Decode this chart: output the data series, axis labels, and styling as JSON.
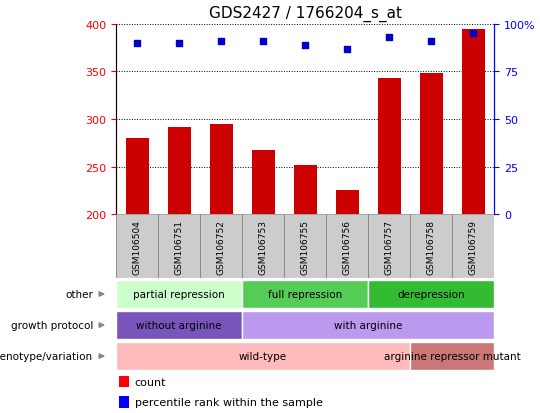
{
  "title": "GDS2427 / 1766204_s_at",
  "samples": [
    "GSM106504",
    "GSM106751",
    "GSM106752",
    "GSM106753",
    "GSM106755",
    "GSM106756",
    "GSM106757",
    "GSM106758",
    "GSM106759"
  ],
  "counts": [
    280,
    292,
    295,
    268,
    252,
    226,
    343,
    348,
    395
  ],
  "percentiles": [
    90,
    90,
    91,
    91,
    89,
    87,
    93,
    91,
    95
  ],
  "ylim_left": [
    200,
    400
  ],
  "ylim_right": [
    0,
    100
  ],
  "yticks_left": [
    200,
    250,
    300,
    350,
    400
  ],
  "yticks_right": [
    0,
    25,
    50,
    75,
    100
  ],
  "bar_color": "#cc0000",
  "dot_color": "#0000cc",
  "grid_color": "#000000",
  "title_fontsize": 11,
  "annotation_rows": [
    {
      "label": "other",
      "segments": [
        {
          "text": "partial repression",
          "span": [
            0,
            3
          ],
          "color": "#ccffcc"
        },
        {
          "text": "full repression",
          "span": [
            3,
            6
          ],
          "color": "#55cc55"
        },
        {
          "text": "derepression",
          "span": [
            6,
            9
          ],
          "color": "#33bb33"
        }
      ]
    },
    {
      "label": "growth protocol",
      "segments": [
        {
          "text": "without arginine",
          "span": [
            0,
            3
          ],
          "color": "#7755bb"
        },
        {
          "text": "with arginine",
          "span": [
            3,
            9
          ],
          "color": "#bb99ee"
        }
      ]
    },
    {
      "label": "genotype/variation",
      "segments": [
        {
          "text": "wild-type",
          "span": [
            0,
            7
          ],
          "color": "#ffbbbb"
        },
        {
          "text": "arginine repressor mutant",
          "span": [
            7,
            9
          ],
          "color": "#cc7777"
        }
      ]
    }
  ],
  "sample_label_bg": "#cccccc",
  "sample_label_border": "#888888"
}
